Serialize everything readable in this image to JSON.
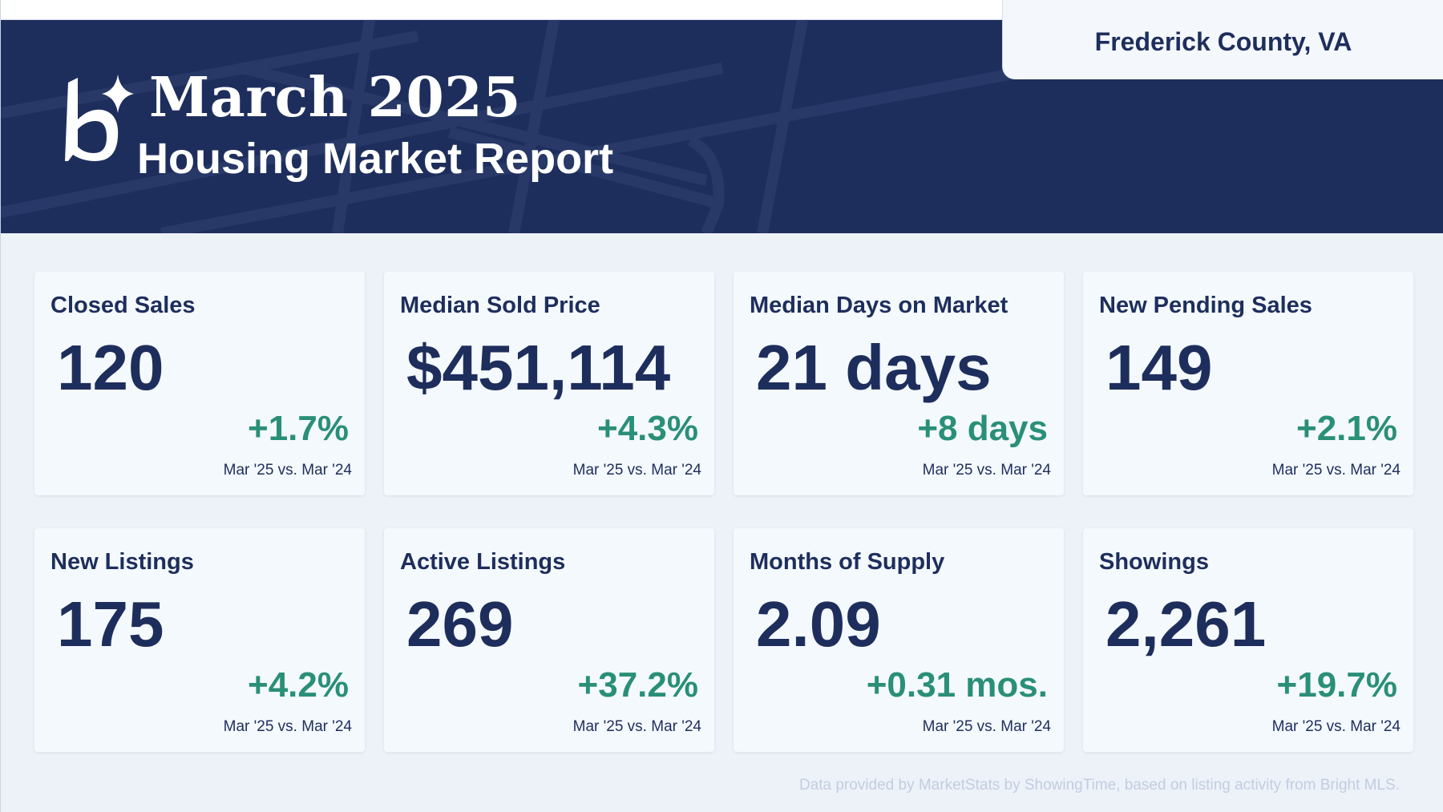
{
  "report": {
    "title_line1": "March 2025",
    "title_line2": "Housing Market Report",
    "location": "Frederick County, VA",
    "logo_icon": "brand-b-sparkle-logo"
  },
  "colors": {
    "header_bg": "#1e2e5c",
    "page_bg": "#edf2f9",
    "card_bg": "#f4f9fe",
    "primary_text": "#1e2e5c",
    "positive_change": "#2a8f78",
    "footer_text": "#c2cde0"
  },
  "metrics": [
    {
      "label": "Closed Sales",
      "value": "120",
      "change": "+1.7%",
      "period": "Mar '25 vs. Mar '24"
    },
    {
      "label": "Median Sold Price",
      "value": "$451,114",
      "change": "+4.3%",
      "period": "Mar '25 vs. Mar '24"
    },
    {
      "label": "Median Days on Market",
      "value": "21 days",
      "change": "+8 days",
      "period": "Mar '25 vs. Mar '24"
    },
    {
      "label": "New Pending Sales",
      "value": "149",
      "change": "+2.1%",
      "period": "Mar '25 vs. Mar '24"
    },
    {
      "label": "New Listings",
      "value": "175",
      "change": "+4.2%",
      "period": "Mar '25 vs. Mar '24"
    },
    {
      "label": "Active Listings",
      "value": "269",
      "change": "+37.2%",
      "period": "Mar '25 vs. Mar '24"
    },
    {
      "label": "Months of Supply",
      "value": "2.09",
      "change": "+0.31 mos.",
      "period": "Mar '25 vs. Mar '24"
    },
    {
      "label": "Showings",
      "value": "2,261",
      "change": "+19.7%",
      "period": "Mar '25 vs. Mar '24"
    }
  ],
  "footer": {
    "note": "Data provided by MarketStats by ShowingTime, based on listing activity from Bright MLS."
  }
}
